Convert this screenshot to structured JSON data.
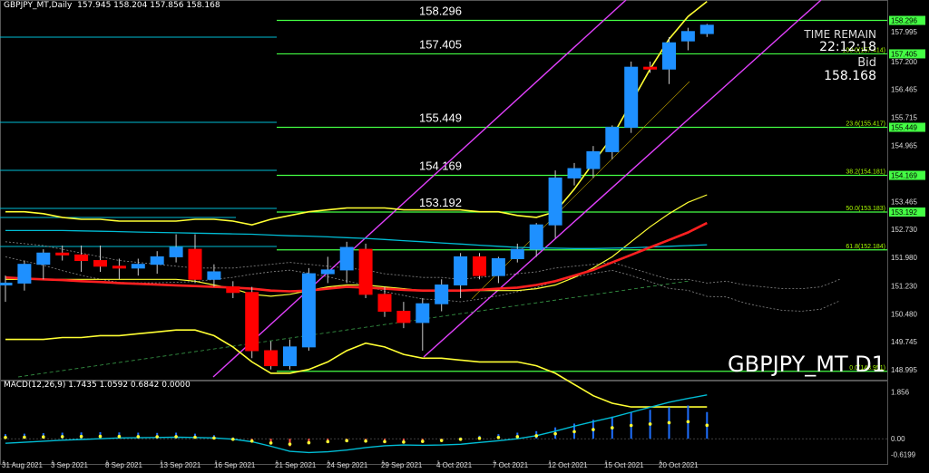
{
  "header": {
    "symbol_label": "GBPJPY_MT,Daily",
    "ohlc": "157.945 158.204 157.856 158.168"
  },
  "info": {
    "time_remain_label": "TIME REMAIN",
    "countdown": "22:12:18",
    "bid_label": "Bid",
    "bid_value": "158.168"
  },
  "watermark": "GBPJPY_MT D1",
  "colors": {
    "background": "#000000",
    "bull": "#1e90ff",
    "bear": "#ff0000",
    "level_line": "#44ff44",
    "cyan_line": "#00bcd4",
    "channel": "#e040fb",
    "bollinger": "#ffff33",
    "ema_red": "#ff2020",
    "macd_signal": "#00bcd4",
    "grid": "#888888"
  },
  "chart_data": [
    {
      "type": "candlestick",
      "title": "GBPJPY_MT,Daily",
      "timeframe": "D1",
      "x_labels": [
        "31 Aug 2021",
        "3 Sep 2021",
        "8 Sep 2021",
        "13 Sep 2021",
        "16 Sep 2021",
        "21 Sep 2021",
        "24 Sep 2021",
        "29 Sep 2021",
        "4 Oct 2021",
        "7 Oct 2021",
        "12 Oct 2021",
        "15 Oct 2021",
        "20 Oct 2021"
      ],
      "y_ticks": [
        "158.296",
        "157.995",
        "157.405",
        "157.200",
        "156.465",
        "155.715",
        "155.449",
        "154.965",
        "154.169",
        "153.465",
        "153.192",
        "152.730",
        "151.980",
        "151.230",
        "150.480",
        "149.745",
        "148.995"
      ],
      "ylim": [
        148.8,
        158.55
      ],
      "candles": [
        {
          "o": 151.25,
          "h": 151.5,
          "l": 150.8,
          "c": 151.3
        },
        {
          "o": 151.3,
          "h": 151.9,
          "l": 151.1,
          "c": 151.8
        },
        {
          "o": 151.8,
          "h": 152.2,
          "l": 151.4,
          "c": 152.1
        },
        {
          "o": 152.1,
          "h": 152.3,
          "l": 151.9,
          "c": 152.05
        },
        {
          "o": 152.05,
          "h": 152.3,
          "l": 151.6,
          "c": 151.9
        },
        {
          "o": 151.9,
          "h": 152.3,
          "l": 151.6,
          "c": 151.75
        },
        {
          "o": 151.75,
          "h": 151.95,
          "l": 151.4,
          "c": 151.7
        },
        {
          "o": 151.7,
          "h": 151.95,
          "l": 151.5,
          "c": 151.8
        },
        {
          "o": 151.8,
          "h": 152.15,
          "l": 151.55,
          "c": 152.0
        },
        {
          "o": 152.0,
          "h": 152.6,
          "l": 151.85,
          "c": 152.25
        },
        {
          "o": 152.2,
          "h": 152.6,
          "l": 151.3,
          "c": 151.4
        },
        {
          "o": 151.4,
          "h": 151.8,
          "l": 151.2,
          "c": 151.6
        },
        {
          "o": 151.2,
          "h": 151.35,
          "l": 150.9,
          "c": 151.05
        },
        {
          "o": 151.05,
          "h": 151.2,
          "l": 149.3,
          "c": 149.5
        },
        {
          "o": 149.5,
          "h": 149.75,
          "l": 149.0,
          "c": 149.1
        },
        {
          "o": 149.1,
          "h": 149.8,
          "l": 149.0,
          "c": 149.6
        },
        {
          "o": 149.6,
          "h": 151.7,
          "l": 149.5,
          "c": 151.55
        },
        {
          "o": 151.55,
          "h": 152.0,
          "l": 151.3,
          "c": 151.65
        },
        {
          "o": 151.65,
          "h": 152.4,
          "l": 151.3,
          "c": 152.25
        },
        {
          "o": 152.2,
          "h": 152.35,
          "l": 150.9,
          "c": 151.0
        },
        {
          "o": 151.0,
          "h": 151.2,
          "l": 150.4,
          "c": 150.55
        },
        {
          "o": 150.55,
          "h": 150.8,
          "l": 150.1,
          "c": 150.25
        },
        {
          "o": 150.25,
          "h": 150.9,
          "l": 149.5,
          "c": 150.75
        },
        {
          "o": 150.75,
          "h": 151.4,
          "l": 150.55,
          "c": 151.25
        },
        {
          "o": 151.25,
          "h": 152.1,
          "l": 150.9,
          "c": 152.0
        },
        {
          "o": 152.0,
          "h": 152.1,
          "l": 151.4,
          "c": 151.5
        },
        {
          "o": 151.5,
          "h": 152.0,
          "l": 151.3,
          "c": 151.95
        },
        {
          "o": 151.95,
          "h": 152.35,
          "l": 151.85,
          "c": 152.2
        },
        {
          "o": 152.2,
          "h": 152.9,
          "l": 152.0,
          "c": 152.85
        },
        {
          "o": 152.85,
          "h": 154.3,
          "l": 152.5,
          "c": 154.1
        },
        {
          "o": 154.1,
          "h": 154.5,
          "l": 153.9,
          "c": 154.35
        },
        {
          "o": 154.35,
          "h": 154.95,
          "l": 154.1,
          "c": 154.8
        },
        {
          "o": 154.8,
          "h": 155.5,
          "l": 154.6,
          "c": 155.45
        },
        {
          "o": 155.45,
          "h": 157.2,
          "l": 155.3,
          "c": 157.05
        },
        {
          "o": 157.05,
          "h": 157.2,
          "l": 156.9,
          "c": 157.0
        },
        {
          "o": 157.0,
          "h": 157.85,
          "l": 156.6,
          "c": 157.7
        },
        {
          "o": 157.75,
          "h": 158.1,
          "l": 157.5,
          "c": 158.0
        },
        {
          "o": 157.945,
          "h": 158.204,
          "l": 157.856,
          "c": 158.168
        }
      ],
      "levels": [
        {
          "value": 158.296,
          "label": "158.296",
          "fib": ""
        },
        {
          "value": 157.405,
          "label": "157.405",
          "fib": "100.0(157.414)"
        },
        {
          "value": 155.449,
          "label": "155.449",
          "fib": "23.6(155.417)"
        },
        {
          "value": 154.169,
          "label": "154.169",
          "fib": "38.2(154.181)"
        },
        {
          "value": 153.192,
          "label": "153.192",
          "fib": "50.0(153.183)"
        },
        {
          "value": 152.184,
          "label": "",
          "fib": "61.8(152.184)"
        },
        {
          "value": 148.95,
          "label": "",
          "fib": "0.0(148.951)"
        }
      ],
      "ma_red": [
        151.45,
        151.42,
        151.4,
        151.38,
        151.35,
        151.33,
        151.3,
        151.28,
        151.26,
        151.24,
        151.22,
        151.2,
        151.18,
        151.15,
        151.1,
        151.08,
        151.1,
        151.15,
        151.2,
        151.18,
        151.15,
        151.12,
        151.1,
        151.1,
        151.1,
        151.12,
        151.15,
        151.18,
        151.25,
        151.35,
        151.5,
        151.65,
        151.85,
        152.05,
        152.25,
        152.45,
        152.65,
        152.9
      ],
      "ma_cyan": [
        152.7,
        152.7,
        152.7,
        152.7,
        152.69,
        152.68,
        152.67,
        152.66,
        152.65,
        152.64,
        152.63,
        152.62,
        152.61,
        152.6,
        152.58,
        152.56,
        152.55,
        152.53,
        152.51,
        152.49,
        152.46,
        152.43,
        152.4,
        152.37,
        152.34,
        152.31,
        152.28,
        152.25,
        152.24,
        152.23,
        152.22,
        152.22,
        152.23,
        152.24,
        152.26,
        152.28,
        152.3,
        152.32
      ],
      "bb_upper": [
        153.2,
        153.2,
        153.15,
        153.05,
        153.0,
        153.0,
        152.95,
        152.95,
        152.95,
        152.95,
        153.0,
        153.0,
        152.95,
        152.85,
        153.0,
        153.1,
        153.2,
        153.25,
        153.3,
        153.3,
        153.3,
        153.25,
        153.25,
        153.25,
        153.25,
        153.2,
        153.2,
        153.1,
        153.05,
        153.2,
        153.8,
        154.5,
        155.2,
        156.1,
        157.0,
        157.8,
        158.4,
        158.8
      ],
      "bb_lower": [
        149.8,
        149.8,
        149.8,
        149.85,
        149.85,
        149.9,
        149.9,
        149.95,
        150.0,
        150.05,
        150.05,
        149.9,
        149.6,
        149.2,
        148.9,
        148.9,
        149.0,
        149.2,
        149.5,
        149.7,
        149.6,
        149.4,
        149.3,
        149.3,
        149.25,
        149.2,
        149.2,
        149.2,
        149.1,
        148.9,
        148.6,
        148.3,
        148.1,
        148.0,
        148.0,
        148.0,
        148.0,
        148.0
      ],
      "bb_mid": [
        151.4,
        151.4,
        151.4,
        151.4,
        151.4,
        151.4,
        151.4,
        151.4,
        151.4,
        151.4,
        151.35,
        151.25,
        151.15,
        151.0,
        150.95,
        151.0,
        151.1,
        151.2,
        151.25,
        151.25,
        151.2,
        151.15,
        151.1,
        151.1,
        151.1,
        151.1,
        151.1,
        151.1,
        151.15,
        151.25,
        151.45,
        151.7,
        152.0,
        152.4,
        152.8,
        153.15,
        153.45,
        153.65
      ]
    },
    {
      "type": "macd",
      "title": "MACD(12,26,9) 1.7435 1.0592 0.6842 0.0000",
      "params": [
        12,
        26,
        9
      ],
      "values": [
        1.7435,
        1.0592,
        0.6842,
        0.0
      ],
      "y_ticks": [
        "1.856",
        "0.00",
        "-0.6199"
      ],
      "ylim": [
        -0.75,
        1.95
      ],
      "histogram": [
        0.18,
        0.2,
        0.22,
        0.24,
        0.25,
        0.26,
        0.25,
        0.24,
        0.23,
        0.24,
        0.2,
        0.14,
        0.05,
        -0.08,
        -0.22,
        -0.3,
        -0.2,
        -0.12,
        -0.05,
        -0.08,
        -0.12,
        -0.15,
        -0.1,
        -0.04,
        0.05,
        0.12,
        0.18,
        0.24,
        0.3,
        0.45,
        0.6,
        0.75,
        0.88,
        1.05,
        1.15,
        1.25,
        1.32,
        1.06
      ],
      "signal": [
        -0.18,
        -0.14,
        -0.1,
        -0.06,
        -0.03,
        0.0,
        0.03,
        0.04,
        0.05,
        0.06,
        0.05,
        0.03,
        -0.02,
        -0.12,
        -0.3,
        -0.5,
        -0.55,
        -0.52,
        -0.45,
        -0.35,
        -0.28,
        -0.25,
        -0.26,
        -0.25,
        -0.22,
        -0.15,
        -0.08,
        0.0,
        0.12,
        0.3,
        0.5,
        0.68,
        0.85,
        1.05,
        1.25,
        1.45,
        1.6,
        1.74
      ]
    }
  ]
}
